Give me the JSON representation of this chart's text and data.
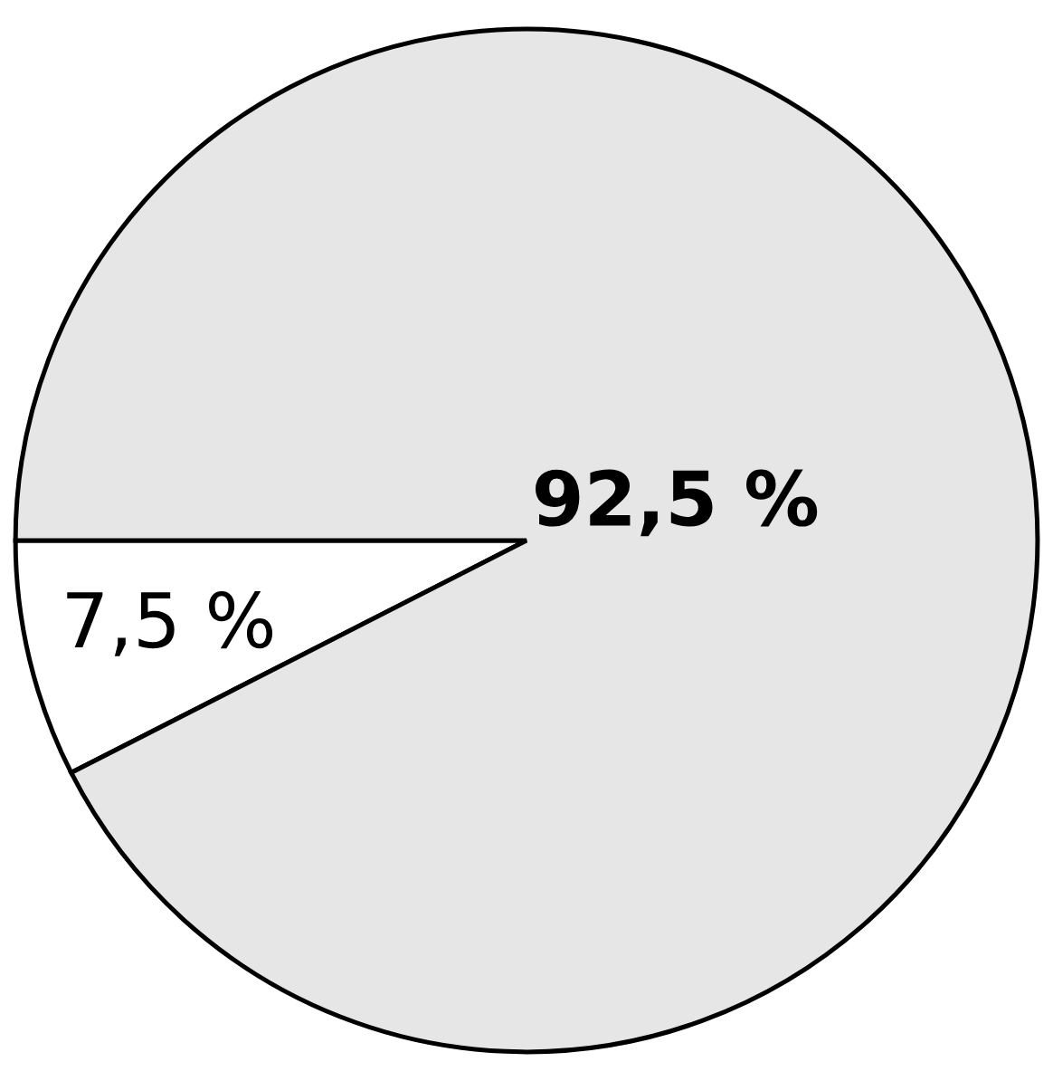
{
  "chart_data": {
    "type": "pie",
    "categories": [
      null,
      null
    ],
    "values": [
      7.5,
      92.5
    ],
    "colors": [
      "#ffffff",
      "#e6e6e6"
    ],
    "value_labels": [
      "7,5 %",
      "92,5 %"
    ]
  }
}
